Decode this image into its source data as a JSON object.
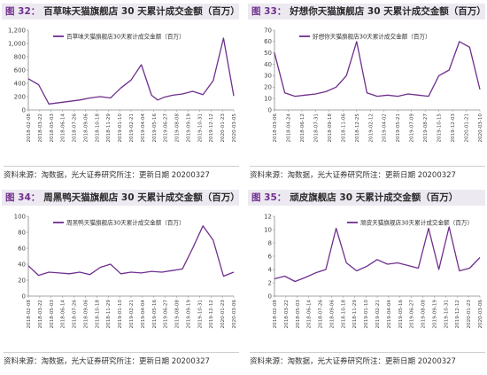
{
  "source_text": "资料来源：淘数据，光大证券研究所注：更新日期 20200327",
  "x_tick_labels": [
    [
      "2018-02-08",
      "2018-03-22",
      "2018-05-03",
      "2018-06-14",
      "2018-07-26",
      "2018-09-06",
      "2018-10-18",
      "2018-11-29",
      "2019-01-10",
      "2019-02-21",
      "2019-04-04",
      "2019-05-16",
      "2019-06-27",
      "2019-08-08",
      "2019-09-19",
      "2019-10-31",
      "2019-12-12",
      "2020-01-23",
      "2020-03-05"
    ],
    [
      "2018-03-06",
      "2018-04-24",
      "2018-06-12",
      "2018-07-31",
      "2018-09-18",
      "2018-11-06",
      "2018-12-25",
      "2019-02-12",
      "2019-04-02",
      "2019-05-21",
      "2019-07-09",
      "2019-08-27",
      "2019-10-15",
      "2019-12-03",
      "2020-01-21",
      "2020-03-10"
    ],
    [
      "2018-02-08",
      "2018-03-22",
      "2018-05-03",
      "2018-06-14",
      "2018-07-26",
      "2018-09-06",
      "2018-10-18",
      "2018-11-29",
      "2019-01-10",
      "2019-02-21",
      "2019-04-04",
      "2019-05-16",
      "2019-06-27",
      "2019-08-08",
      "2019-09-19",
      "2019-10-31",
      "2019-12-12",
      "2020-01-23",
      "2020-03-06"
    ],
    [
      "2018-02-08",
      "2018-03-22",
      "2018-05-03",
      "2018-06-14",
      "2018-07-26",
      "2018-09-06",
      "2018-10-18",
      "2018-11-29",
      "2019-01-10",
      "2019-02-21",
      "2019-04-04",
      "2019-05-16",
      "2019-06-27",
      "2019-08-08",
      "2019-09-19",
      "2019-10-31",
      "2019-12-12",
      "2020-01-23",
      "2020-03-06"
    ]
  ],
  "chart_data": [
    {
      "type": "line",
      "figure_number": "图 32：",
      "title": "百草味天猫旗舰店 30 天累计成交金额（百万）",
      "series": [
        {
          "name": "百草味天猫旗舰店30天累计成交金额（百万）",
          "color": "#6f2f8d",
          "x": [
            0,
            5,
            10,
            15,
            20,
            25,
            30,
            35,
            40,
            45,
            50,
            55,
            60,
            63,
            66,
            70,
            75,
            80,
            85,
            90,
            95,
            100
          ],
          "values": [
            470,
            380,
            90,
            110,
            130,
            150,
            180,
            200,
            180,
            330,
            450,
            680,
            220,
            150,
            190,
            220,
            240,
            280,
            230,
            440,
            1080,
            210
          ]
        }
      ],
      "ylim": [
        0,
        1200
      ],
      "yticks": [
        "0",
        "200",
        "400",
        "600",
        "800",
        "1,000",
        "1,200"
      ],
      "xlabel": "",
      "ylabel": "",
      "grid": false,
      "legend": "top-left"
    },
    {
      "type": "line",
      "figure_number": "图 33：",
      "title": "好想你天猫旗舰店 30 天累计成交金额（百万）",
      "series": [
        {
          "name": "好想你天猫旗舰店30天累计成交金额（百万）",
          "color": "#6f2f8d",
          "x": [
            0,
            5,
            10,
            15,
            20,
            25,
            30,
            35,
            40,
            45,
            50,
            55,
            60,
            65,
            70,
            75,
            80,
            85,
            90,
            95,
            100
          ],
          "values": [
            50,
            15,
            12,
            13,
            14,
            16,
            20,
            30,
            60,
            15,
            12,
            13,
            12,
            14,
            13,
            12,
            30,
            35,
            60,
            55,
            18
          ]
        }
      ],
      "ylim": [
        0,
        70
      ],
      "yticks": [
        "0",
        "10",
        "20",
        "30",
        "40",
        "50",
        "60",
        "70"
      ],
      "xlabel": "",
      "ylabel": "",
      "grid": false,
      "legend": "top-left"
    },
    {
      "type": "line",
      "figure_number": "图 34：",
      "title": "周黑鸭天猫旗舰店 30 天累计成交金额（百万）",
      "series": [
        {
          "name": "周黑鸭天猫旗舰店30天累计成交金额（百万）",
          "color": "#6f2f8d",
          "x": [
            0,
            5,
            10,
            15,
            20,
            25,
            30,
            35,
            40,
            45,
            50,
            55,
            60,
            65,
            70,
            75,
            80,
            85,
            90,
            95,
            100
          ],
          "values": [
            38,
            26,
            30,
            29,
            28,
            30,
            27,
            36,
            40,
            28,
            30,
            29,
            31,
            30,
            32,
            34,
            60,
            88,
            70,
            25,
            30
          ]
        }
      ],
      "ylim": [
        0,
        100
      ],
      "yticks": [
        "0",
        "20",
        "40",
        "60",
        "80",
        "100"
      ],
      "xlabel": "",
      "ylabel": "",
      "grid": false,
      "legend": "top-left"
    },
    {
      "type": "line",
      "figure_number": "图 35：",
      "title": "顽皮旗舰店 30 天累计成交金额（百万）",
      "series": [
        {
          "name": "顽皮天猫旗舰店30天累计成交金额（百万）",
          "color": "#6f2f8d",
          "x": [
            0,
            5,
            10,
            15,
            20,
            25,
            30,
            35,
            40,
            45,
            50,
            55,
            60,
            65,
            70,
            75,
            80,
            85,
            90,
            95,
            100
          ],
          "values": [
            2.6,
            3.0,
            2.2,
            2.8,
            3.5,
            4.0,
            10.2,
            5.0,
            3.8,
            4.5,
            5.5,
            4.8,
            5.0,
            4.6,
            4.2,
            10.2,
            4.0,
            10.4,
            3.8,
            4.2,
            5.8
          ]
        }
      ],
      "ylim": [
        0,
        12
      ],
      "yticks": [
        "0",
        "2",
        "4",
        "6",
        "8",
        "10",
        "12"
      ],
      "xlabel": "",
      "ylabel": "",
      "grid": false,
      "legend": "top-center"
    }
  ]
}
